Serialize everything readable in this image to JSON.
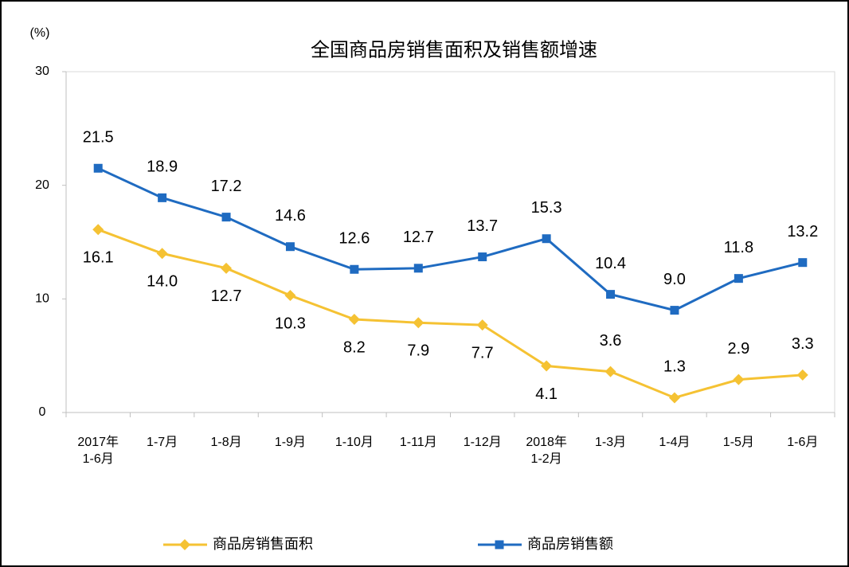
{
  "chart_data": {
    "type": "line",
    "title": "全国商品房销售面积及销售额增速",
    "y_label": "(%)",
    "categories": [
      "2017年\n1-6月",
      "1-7月",
      "1-8月",
      "1-9月",
      "1-10月",
      "1-11月",
      "1-12月",
      "2018年\n1-2月",
      "1-3月",
      "1-4月",
      "1-5月",
      "1-6月"
    ],
    "series": [
      {
        "name": "商品房销售面积",
        "color": "#F5C233",
        "marker": "diamond",
        "values": [
          16.1,
          14.0,
          12.7,
          10.3,
          8.2,
          7.9,
          7.7,
          4.1,
          3.6,
          1.3,
          2.9,
          3.3
        ],
        "value_labels": [
          "16.1",
          "14.0",
          "12.7",
          "10.3",
          "8.2",
          "7.9",
          "7.7",
          "4.1",
          "3.6",
          "1.3",
          "2.9",
          "3.3"
        ]
      },
      {
        "name": "商品房销售额",
        "color": "#1F6BC1",
        "marker": "square",
        "values": [
          21.5,
          18.9,
          17.2,
          14.6,
          12.6,
          12.7,
          13.7,
          15.3,
          10.4,
          9.0,
          11.8,
          13.2
        ],
        "value_labels": [
          "21.5",
          "18.9",
          "17.2",
          "14.6",
          "12.6",
          "12.7",
          "13.7",
          "15.3",
          "10.4",
          "9.0",
          "11.8",
          "13.2"
        ]
      }
    ],
    "ylim": [
      0,
      30
    ],
    "yticks": [
      0,
      10,
      20,
      30
    ],
    "grid": false,
    "legend": "bottom"
  }
}
